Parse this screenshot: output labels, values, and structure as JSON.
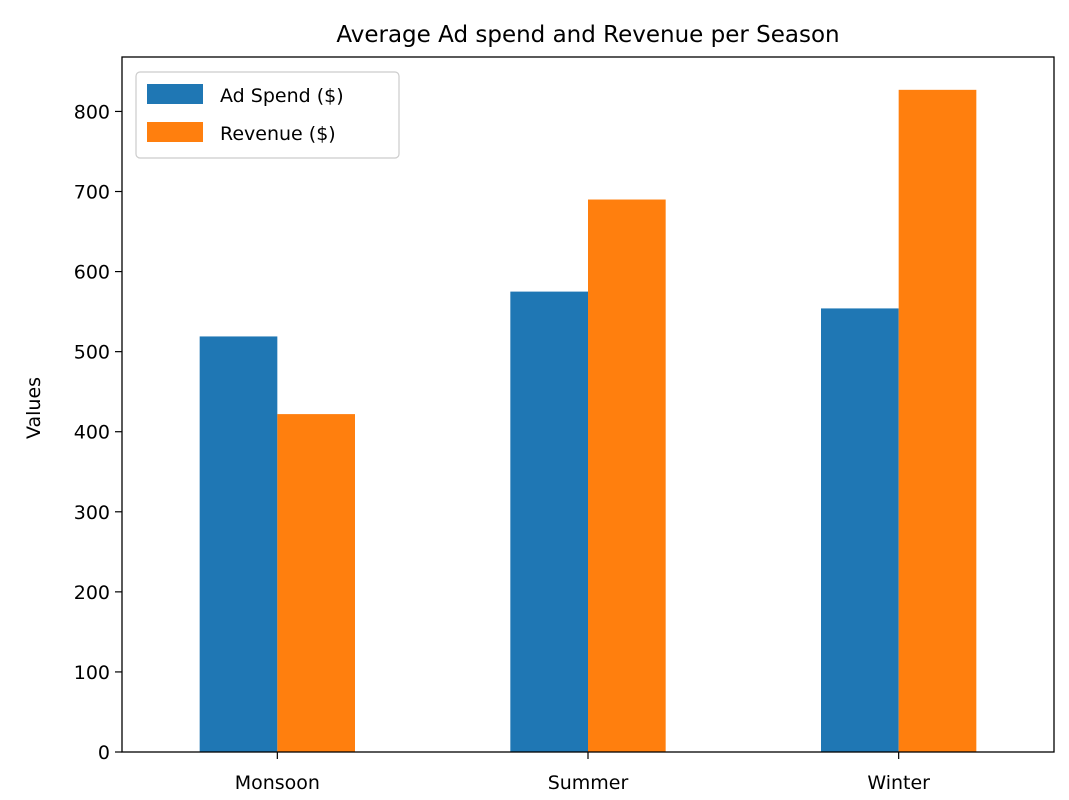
{
  "chart_data": {
    "type": "bar",
    "title": "Average Ad spend and Revenue per Season",
    "xlabel": "",
    "ylabel": "Values",
    "categories": [
      "Monsoon",
      "Summer",
      "Winter"
    ],
    "series": [
      {
        "name": "Ad Spend ($)",
        "values": [
          519,
          575,
          554
        ],
        "color": "#1f77b4"
      },
      {
        "name": "Revenue ($)",
        "values": [
          422,
          690,
          827
        ],
        "color": "#ff7f0e"
      }
    ],
    "ylim": [
      0,
      868
    ],
    "yticks": [
      0,
      100,
      200,
      300,
      400,
      500,
      600,
      700,
      800
    ],
    "grid": false,
    "legend_position": "top-left"
  }
}
